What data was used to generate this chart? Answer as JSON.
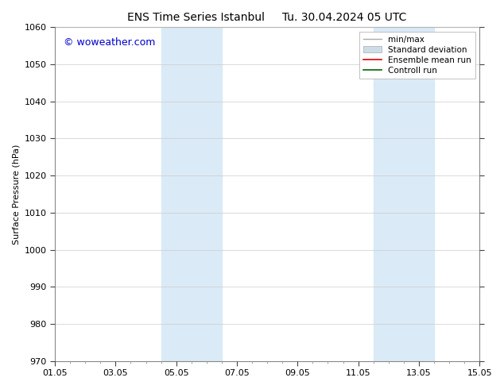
{
  "title_left": "ENS Time Series Istanbul",
  "title_right": "Tu. 30.04.2024 05 UTC",
  "ylabel": "Surface Pressure (hPa)",
  "ylim": [
    970,
    1060
  ],
  "yticks": [
    970,
    980,
    990,
    1000,
    1010,
    1020,
    1030,
    1040,
    1050,
    1060
  ],
  "xlim": [
    0,
    14
  ],
  "xtick_labels": [
    "01.05",
    "03.05",
    "05.05",
    "07.05",
    "09.05",
    "11.05",
    "13.05",
    "15.05"
  ],
  "xtick_positions": [
    0,
    2,
    4,
    6,
    8,
    10,
    12,
    14
  ],
  "shaded_regions": [
    {
      "x_start": 3.5,
      "x_end": 5.5,
      "color": "#daeaf6"
    },
    {
      "x_start": 10.5,
      "x_end": 12.5,
      "color": "#daeaf6"
    }
  ],
  "watermark_text": "© woweather.com",
  "watermark_color": "#0000cc",
  "watermark_fontsize": 9,
  "legend_items": [
    {
      "label": "min/max",
      "type": "line",
      "color": "#aaaaaa",
      "lw": 1.0
    },
    {
      "label": "Standard deviation",
      "type": "patch",
      "color": "#ccdde8"
    },
    {
      "label": "Ensemble mean run",
      "type": "line",
      "color": "#dd0000",
      "lw": 1.2
    },
    {
      "label": "Controll run",
      "type": "line",
      "color": "#006600",
      "lw": 1.2
    }
  ],
  "bg_color": "#ffffff",
  "grid_color": "#cccccc",
  "title_fontsize": 10,
  "axis_fontsize": 8,
  "tick_fontsize": 8,
  "legend_fontsize": 7.5
}
